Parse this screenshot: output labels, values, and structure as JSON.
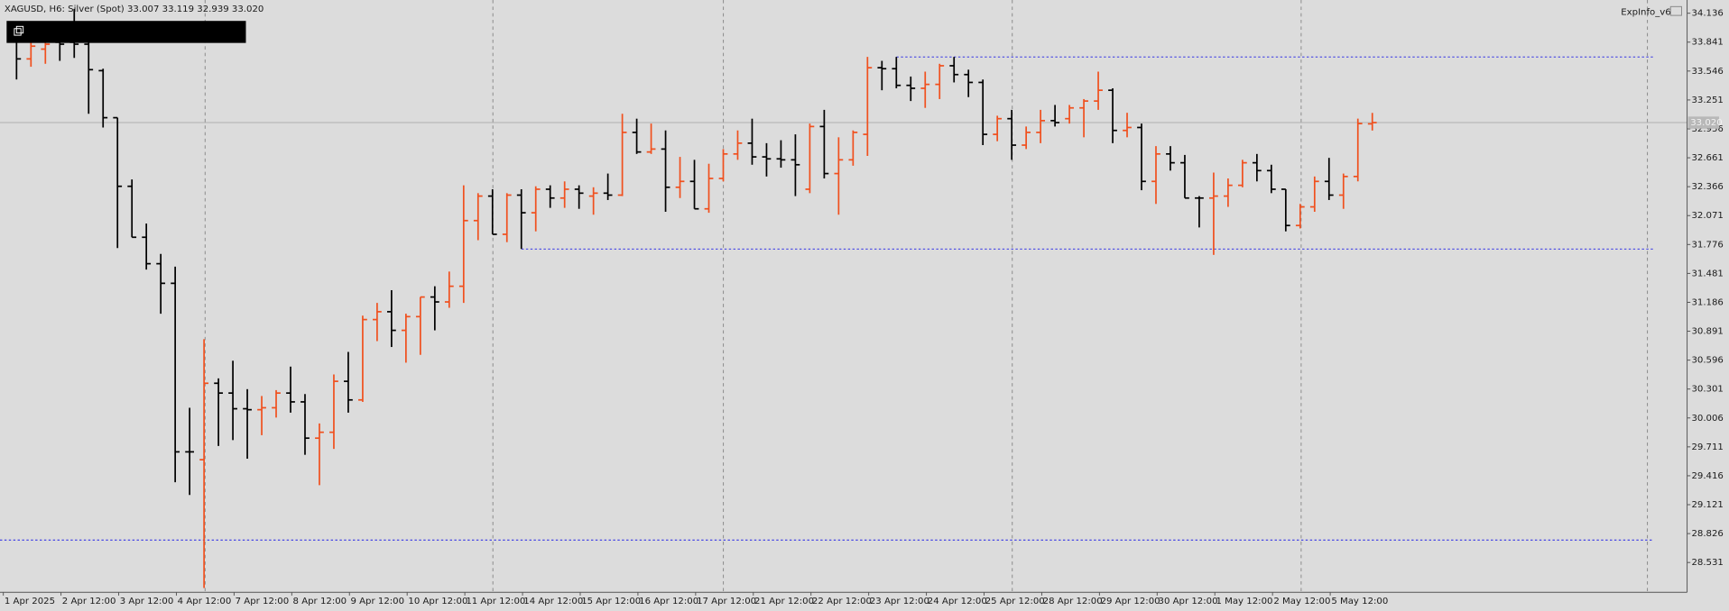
{
  "chart_data": {
    "type": "ohlc",
    "header": "XAGUSD, H6:  Silver (Spot)  33.007 33.119 32.939 33.020",
    "indicator_label": "ExpInfo_v6",
    "up_color": "#f0501e",
    "down_color": "#000000",
    "categories": [
      "1 Apr 2025",
      null,
      null,
      null,
      "2 Apr 12:00",
      null,
      null,
      null,
      "3 Apr 12:00",
      null,
      null,
      null,
      "4 Apr 12:00",
      null,
      null,
      null,
      "7 Apr 12:00",
      null,
      null,
      null,
      "8 Apr 12:00",
      null,
      null,
      null,
      "9 Apr 12:00",
      null,
      null,
      null,
      "10 Apr 12:00",
      null,
      null,
      null,
      "11 Apr 12:00",
      null,
      null,
      null,
      "14 Apr 12:00",
      null,
      null,
      null,
      "15 Apr 12:00",
      null,
      null,
      null,
      "16 Apr 12:00",
      null,
      null,
      null,
      "17 Apr 12:00",
      null,
      null,
      null,
      "21 Apr 12:00",
      null,
      null,
      null,
      "22 Apr 12:00",
      null,
      null,
      null,
      "23 Apr 12:00",
      null,
      null,
      null,
      "24 Apr 12:00",
      null,
      null,
      null,
      "25 Apr 12:00",
      null,
      null,
      null,
      "28 Apr 12:00",
      null,
      null,
      null,
      "29 Apr 12:00",
      null,
      null,
      null,
      "30 Apr 12:00",
      null,
      null,
      null,
      "1 May 12:00",
      null,
      null,
      null,
      "2 May 12:00",
      null,
      null,
      null,
      "5 May 12:00",
      null,
      null
    ],
    "open": [
      34.0,
      33.67,
      33.77,
      33.84,
      33.84,
      33.82,
      33.55,
      33.07,
      32.37,
      31.85,
      31.58,
      31.38,
      29.66,
      29.58,
      30.36,
      30.26,
      30.1,
      30.09,
      30.11,
      30.26,
      30.17,
      29.8,
      29.86,
      30.38,
      30.19,
      31.01,
      31.09,
      30.9,
      31.04,
      31.24,
      31.19,
      31.35,
      32.02,
      32.27,
      31.88,
      32.28,
      32.1,
      32.34,
      32.25,
      32.34,
      32.27,
      32.3,
      32.28,
      32.92,
      32.72,
      32.75,
      32.36,
      32.42,
      32.14,
      32.45,
      32.7,
      32.81,
      32.67,
      32.65,
      32.64,
      32.34,
      32.98,
      32.5,
      32.64,
      32.9,
      33.58,
      33.57,
      33.4,
      33.37,
      33.41,
      33.6,
      33.51,
      33.43,
      32.9,
      33.06,
      32.79,
      32.92,
      33.04,
      33.06,
      33.17,
      33.24,
      33.35,
      32.94,
      32.97,
      32.42,
      32.7,
      32.61,
      32.25,
      32.25,
      32.27,
      32.38,
      32.61,
      32.53,
      32.34,
      31.97,
      32.16,
      32.42,
      32.28,
      32.47,
      33.007
    ],
    "high": [
      34.02,
      33.84,
      33.84,
      33.93,
      34.18,
      33.84,
      33.57,
      33.07,
      32.44,
      31.99,
      31.68,
      31.55,
      30.11,
      30.81,
      30.41,
      30.59,
      30.3,
      30.23,
      30.29,
      30.53,
      30.25,
      29.95,
      30.45,
      30.68,
      31.05,
      31.18,
      31.31,
      31.07,
      31.24,
      31.35,
      31.5,
      32.38,
      32.3,
      32.34,
      32.3,
      32.34,
      32.37,
      32.38,
      32.42,
      32.38,
      32.36,
      32.5,
      33.11,
      33.06,
      33.01,
      32.94,
      32.67,
      32.64,
      32.6,
      32.75,
      32.94,
      33.06,
      32.81,
      32.84,
      32.9,
      33.01,
      33.15,
      32.87,
      32.94,
      33.69,
      33.65,
      33.69,
      33.49,
      33.54,
      33.62,
      33.69,
      33.56,
      33.46,
      33.09,
      33.15,
      32.98,
      33.15,
      33.2,
      33.2,
      33.26,
      33.54,
      33.37,
      33.12,
      33.01,
      32.78,
      32.78,
      32.69,
      32.27,
      32.51,
      32.45,
      32.64,
      32.7,
      32.59,
      32.34,
      32.19,
      32.47,
      32.66,
      32.5,
      33.06,
      33.119
    ],
    "low": [
      33.46,
      33.59,
      33.62,
      33.65,
      33.68,
      33.11,
      32.97,
      31.74,
      31.85,
      31.52,
      31.07,
      29.35,
      29.22,
      28.27,
      29.72,
      29.78,
      29.59,
      29.83,
      30.01,
      30.06,
      29.63,
      29.32,
      29.69,
      30.06,
      30.17,
      30.79,
      30.73,
      30.57,
      30.65,
      30.9,
      31.13,
      31.18,
      31.82,
      31.88,
      31.8,
      31.73,
      31.91,
      32.15,
      32.15,
      32.14,
      32.08,
      32.23,
      32.27,
      32.7,
      32.7,
      32.11,
      32.25,
      32.14,
      32.1,
      32.42,
      32.64,
      32.59,
      32.47,
      32.56,
      32.27,
      32.3,
      32.45,
      32.08,
      32.58,
      32.68,
      33.35,
      33.37,
      33.24,
      33.17,
      33.26,
      33.43,
      33.28,
      32.79,
      32.83,
      32.64,
      32.75,
      32.81,
      32.98,
      33.01,
      32.87,
      33.15,
      32.81,
      32.87,
      32.33,
      32.19,
      32.53,
      32.25,
      31.95,
      31.67,
      32.16,
      32.36,
      32.42,
      32.3,
      31.91,
      31.94,
      32.11,
      32.23,
      32.14,
      32.42,
      32.939
    ],
    "close": [
      33.67,
      33.8,
      33.82,
      33.82,
      33.82,
      33.56,
      33.07,
      32.37,
      31.85,
      31.58,
      31.38,
      29.66,
      29.66,
      30.36,
      30.26,
      30.1,
      30.09,
      30.11,
      30.26,
      30.17,
      29.8,
      29.86,
      30.38,
      30.19,
      31.01,
      31.09,
      30.9,
      31.04,
      31.24,
      31.19,
      31.35,
      32.02,
      32.27,
      31.88,
      32.28,
      32.1,
      32.34,
      32.25,
      32.34,
      32.3,
      32.3,
      32.28,
      32.92,
      32.72,
      32.75,
      32.36,
      32.42,
      32.14,
      32.45,
      32.7,
      32.81,
      32.67,
      32.65,
      32.64,
      32.59,
      32.98,
      32.5,
      32.64,
      32.92,
      33.58,
      33.57,
      33.4,
      33.37,
      33.41,
      33.6,
      33.51,
      33.43,
      32.9,
      33.06,
      32.79,
      32.92,
      33.04,
      33.02,
      33.17,
      33.24,
      33.35,
      32.94,
      32.97,
      32.42,
      32.7,
      32.61,
      32.25,
      32.25,
      32.27,
      32.38,
      32.61,
      32.53,
      32.34,
      31.97,
      32.16,
      32.42,
      32.28,
      32.47,
      33.01,
      33.02
    ],
    "ylim": [
      28.227,
      34.271
    ],
    "yticks": [
      34.136,
      33.841,
      33.546,
      33.251,
      32.956,
      32.661,
      32.366,
      32.071,
      31.776,
      31.481,
      31.186,
      30.891,
      30.596,
      30.301,
      30.006,
      29.711,
      29.416,
      29.121,
      28.826,
      28.531
    ],
    "levels": [
      {
        "value": 33.69,
        "color": "#1e1ee6"
      },
      {
        "value": 31.73,
        "color": "#1e1ee6"
      },
      {
        "value": 28.76,
        "color": "#1e1ee6"
      }
    ],
    "current_price": {
      "value": 33.02,
      "label": "33.020"
    }
  }
}
